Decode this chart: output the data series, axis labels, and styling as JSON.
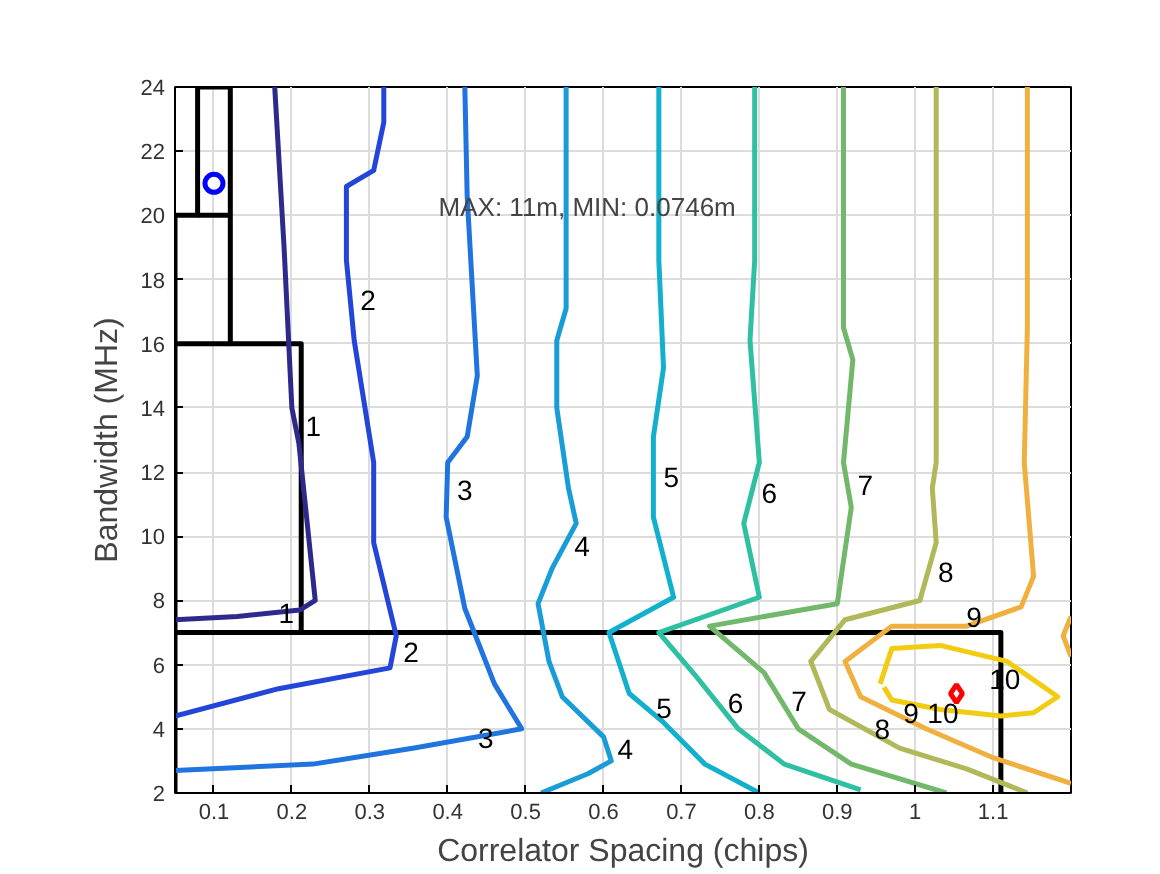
{
  "chart_data": {
    "type": "line",
    "xlabel": "Correlator Spacing (chips)",
    "ylabel": "Bandwidth (MHz)",
    "xlim": [
      0.05,
      1.2
    ],
    "ylim": [
      2,
      24
    ],
    "xticks": [
      0.1,
      0.2,
      0.3,
      0.4,
      0.5,
      0.6,
      0.7,
      0.8,
      0.9,
      1,
      1.1
    ],
    "yticks": [
      2,
      4,
      6,
      8,
      10,
      12,
      14,
      16,
      18,
      20,
      22,
      24
    ],
    "grid": true,
    "annotations": [
      "MAX: 11m, MIN: 0.0746m"
    ],
    "series": [
      {
        "color": "#000000",
        "x": [
          0.05,
          0.05,
          0.079,
          0.079,
          0.121,
          0.121,
          0.212,
          0.212,
          1.11,
          1.11
        ],
        "values": [
          2,
          20,
          20,
          24,
          24,
          16,
          16,
          7,
          7,
          2
        ]
      },
      {
        "color": "#000000",
        "x": [
          0.079,
          0.121
        ],
        "values": [
          20,
          20
        ]
      },
      {
        "color": "#000000",
        "x": [
          0.05,
          0.121
        ],
        "values": [
          16,
          16
        ]
      },
      {
        "color": "#000000",
        "x": [
          0.05,
          0.212
        ],
        "values": [
          7,
          7
        ]
      },
      {
        "name": "1",
        "color": "#2e2a8c",
        "x": [
          0.178,
          0.19,
          0.2,
          0.209,
          0.23,
          0.21,
          0.13,
          0.05
        ],
        "values": [
          24,
          19,
          14,
          12.9,
          8.0,
          7.7,
          7.5,
          7.4
        ]
      },
      {
        "name": "2",
        "color": "#2346d8",
        "x": [
          0.318,
          0.318,
          0.305,
          0.27,
          0.27,
          0.28,
          0.305,
          0.305,
          0.334,
          0.326,
          0.183,
          0.05
        ],
        "values": [
          24,
          22.9,
          21.4,
          20.9,
          18.6,
          16.1,
          12.3,
          9.8,
          6.9,
          5.9,
          5.25,
          4.4
        ]
      },
      {
        "name": "3",
        "color": "#1f74e0",
        "x": [
          0.422,
          0.425,
          0.438,
          0.425,
          0.4,
          0.398,
          0.422,
          0.46,
          0.495,
          0.357,
          0.227,
          0.05
        ],
        "values": [
          24,
          20.6,
          15,
          13.1,
          12.3,
          10.6,
          7.75,
          5.4,
          4.0,
          3.4,
          2.9,
          2.7
        ]
      },
      {
        "name": "4",
        "color": "#1a9cd6",
        "x": [
          0.552,
          0.552,
          0.54,
          0.54,
          0.555,
          0.565,
          0.534,
          0.516,
          0.53,
          0.547,
          0.6,
          0.61,
          0.58,
          0.53,
          0.52
        ],
        "values": [
          24,
          17.1,
          16.1,
          14,
          11.5,
          10.4,
          9.0,
          7.9,
          6.1,
          5.0,
          3.75,
          3.0,
          2.6,
          2.1,
          2.0
        ]
      },
      {
        "name": "5",
        "color": "#12b0cc",
        "x": [
          0.671,
          0.671,
          0.677,
          0.664,
          0.664,
          0.69,
          0.607,
          0.633,
          0.677,
          0.73,
          0.8
        ],
        "values": [
          24,
          18.6,
          15.25,
          13.1,
          10.6,
          8.1,
          7.0,
          5.1,
          4.2,
          2.9,
          2.0
        ]
      },
      {
        "name": "6",
        "color": "#2ec0a0",
        "x": [
          0.794,
          0.794,
          0.788,
          0.8,
          0.78,
          0.8,
          0.671,
          0.72,
          0.773,
          0.832,
          0.93
        ],
        "values": [
          24,
          18.6,
          16.1,
          12.3,
          10.4,
          8.1,
          7.0,
          5.6,
          4.0,
          2.9,
          2.1
        ]
      },
      {
        "name": "7",
        "color": "#72b86a",
        "x": [
          0.908,
          0.908,
          0.92,
          0.908,
          0.918,
          0.9,
          0.736,
          0.806,
          0.85,
          0.918,
          1.04
        ],
        "values": [
          24,
          16.5,
          15.5,
          12.3,
          10.9,
          7.9,
          7.2,
          5.75,
          4.0,
          2.9,
          2.0
        ]
      },
      {
        "name": "8",
        "color": "#b0b85a",
        "x": [
          1.027,
          1.027,
          1.022,
          1.027,
          1.006,
          0.91,
          0.866,
          0.89,
          0.98,
          1.066,
          1.144
        ],
        "values": [
          24,
          12.3,
          11.5,
          9.8,
          8.0,
          7.4,
          6.1,
          4.6,
          3.4,
          2.75,
          2.0
        ]
      },
      {
        "name": "9",
        "color": "#f0b040",
        "x": [
          1.144,
          1.144,
          1.14,
          1.152,
          1.136,
          1.066,
          0.97,
          0.91,
          0.93,
          1.014,
          1.1,
          1.2
        ],
        "values": [
          24,
          16.5,
          12.3,
          8.75,
          7.8,
          7.2,
          7.2,
          6.1,
          5.0,
          4.0,
          3.1,
          2.3
        ]
      },
      {
        "color": "#f0b040",
        "x": [
          1.2,
          1.19,
          1.2
        ],
        "values": [
          7.5,
          6.9,
          6.25
        ]
      },
      {
        "name": "10",
        "color": "#f2cc10",
        "x": [
          0.955,
          0.97,
          1.032,
          1.118,
          1.183,
          1.152,
          1.11,
          1.032,
          0.97,
          0.96
        ],
        "values": [
          5.4,
          6.5,
          6.6,
          6.1,
          5.0,
          4.5,
          4.4,
          4.6,
          4.9,
          5.3
        ]
      },
      {
        "type": "scatter",
        "marker": "circle",
        "color": "#0000ff",
        "x": [
          0.1
        ],
        "values": [
          21
        ]
      },
      {
        "type": "scatter",
        "marker": "diamond",
        "color": "#ff0000",
        "x": [
          1.053
        ],
        "values": [
          5.1
        ]
      }
    ]
  }
}
